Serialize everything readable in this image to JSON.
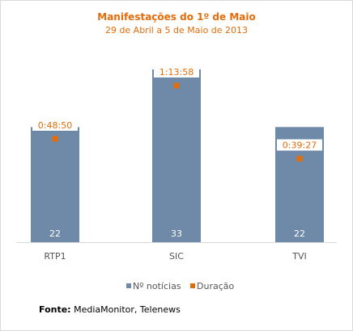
{
  "chart_data": {
    "type": "bar",
    "title": "Manifestações do 1º de Maio",
    "subtitle": "29 de Abril a 5 de Maio de 2013",
    "categories": [
      "RTP1",
      "SIC",
      "TVI"
    ],
    "series": [
      {
        "name": "Nº notícias",
        "values": [
          22,
          33,
          22
        ],
        "labels": [
          "22",
          "33",
          "22"
        ],
        "kind": "bar"
      },
      {
        "name": "Duração",
        "values": [
          2930,
          4438,
          2367
        ],
        "labels": [
          "0:48:50",
          "1:13:58",
          "0:39:27"
        ],
        "kind": "point"
      }
    ],
    "bar_color": "#6f8aa8",
    "point_color": "#e36c0a",
    "legend_position": "bottom",
    "grid": false
  },
  "footer": {
    "source_label": "Fonte:",
    "source_text": " MediaMonitor, Telenews"
  }
}
